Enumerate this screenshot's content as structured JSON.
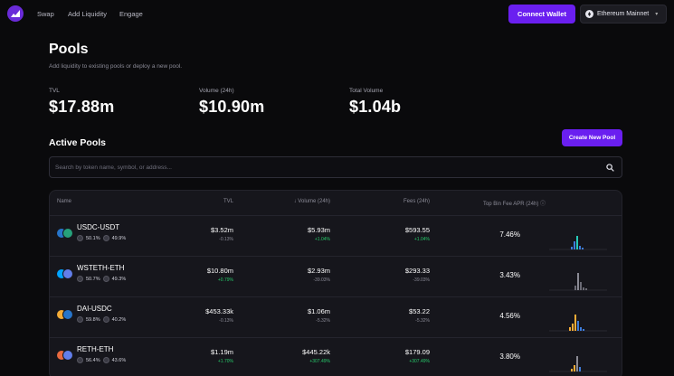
{
  "nav": {
    "links": [
      "Swap",
      "Add Liquidity",
      "Engage"
    ],
    "connect_label": "Connect Wallet",
    "network_label": "Ethereum Mainnet"
  },
  "header": {
    "title": "Pools",
    "subtitle": "Add liquidity to existing pools or deploy a new pool."
  },
  "stats": [
    {
      "label": "TVL",
      "value": "$17.88m"
    },
    {
      "label": "Volume (24h)",
      "value": "$10.90m"
    },
    {
      "label": "Total Volume",
      "value": "$1.04b"
    }
  ],
  "active": {
    "title": "Active Pools",
    "create_label": "Create New Pool"
  },
  "search": {
    "placeholder": "Search by token name, symbol, or address..."
  },
  "table": {
    "headers": {
      "name": "Name",
      "tvl": "TVL",
      "volume": "↓ Volume (24h)",
      "fees": "Fees (24h)",
      "apr": "Top Bin Fee APR (24h) ⓘ"
    },
    "rows": [
      {
        "name": "USDC-USDT",
        "comp1": "50.1%",
        "comp2": "49.9%",
        "tvl": "$3.52m",
        "tvl_chg": "-0.13%",
        "volume": "$5.93m",
        "volume_chg": "+1.04%",
        "fees": "$593.55",
        "fees_chg": "+1.04%",
        "apr": "7.46%",
        "coins": [
          "#2775ca",
          "#26a17b"
        ],
        "spark_color": "#27c9b8"
      },
      {
        "name": "WSTETH-ETH",
        "comp1": "50.7%",
        "comp2": "49.3%",
        "tvl": "$10.80m",
        "tvl_chg": "+0.79%",
        "volume": "$2.93m",
        "volume_chg": "-39.03%",
        "fees": "$293.33",
        "fees_chg": "-39.03%",
        "apr": "3.43%",
        "coins": [
          "#00a3ff",
          "#627eea"
        ],
        "spark_color": "#8a8a94"
      },
      {
        "name": "DAI-USDC",
        "comp1": "59.8%",
        "comp2": "40.2%",
        "tvl": "$453.33k",
        "tvl_chg": "-0.13%",
        "volume": "$1.06m",
        "volume_chg": "-5.32%",
        "fees": "$53.22",
        "fees_chg": "-5.32%",
        "apr": "4.56%",
        "coins": [
          "#f5ac37",
          "#2775ca"
        ],
        "spark_color": "#f5ac37"
      },
      {
        "name": "RETH-ETH",
        "comp1": "56.4%",
        "comp2": "43.6%",
        "tvl": "$1.19m",
        "tvl_chg": "+1.70%",
        "volume": "$445.22k",
        "volume_chg": "+307.49%",
        "fees": "$179.09",
        "fees_chg": "+307.49%",
        "apr": "3.80%",
        "coins": [
          "#e8693f",
          "#627eea"
        ],
        "spark_color": "#f5ac37"
      }
    ]
  }
}
